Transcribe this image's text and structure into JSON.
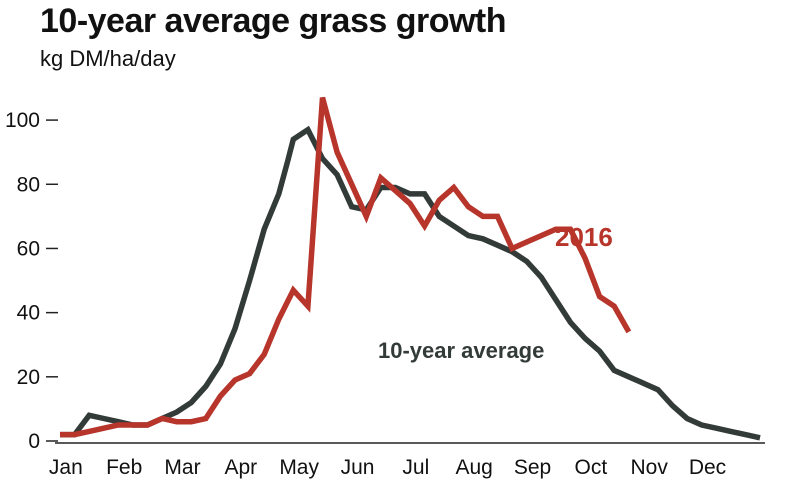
{
  "chart_data": {
    "type": "line",
    "title": "10-year average grass growth",
    "subtitle": "kg DM/ha/day",
    "xlabel": "",
    "ylabel": "",
    "x_categories": [
      "Jan",
      "Feb",
      "Mar",
      "Apr",
      "May",
      "Jun",
      "Jul",
      "Aug",
      "Sep",
      "Oct",
      "Nov",
      "Dec"
    ],
    "x_range": [
      0,
      12
    ],
    "ylim": [
      0,
      110
    ],
    "yticks": [
      0,
      20,
      40,
      60,
      80,
      100
    ],
    "grid": false,
    "legend": "inline labels",
    "series": [
      {
        "name": "10-year average",
        "color": "#333b38",
        "x": [
          0.0,
          0.25,
          0.5,
          0.75,
          1.0,
          1.25,
          1.5,
          1.75,
          2.0,
          2.25,
          2.5,
          2.75,
          3.0,
          3.25,
          3.5,
          3.75,
          3.9,
          4.0,
          4.25,
          4.5,
          4.75,
          5.0,
          5.25,
          5.5,
          5.75,
          6.0,
          6.25,
          6.5,
          6.75,
          7.0,
          7.25,
          7.5,
          7.75,
          8.0,
          8.25,
          8.5,
          8.75,
          9.0,
          9.25,
          9.5,
          9.75,
          10.0,
          10.25,
          10.5,
          10.75,
          11.0,
          11.25,
          11.5,
          11.75,
          12.0
        ],
        "values": [
          2,
          2,
          8,
          7,
          6,
          5,
          5,
          7,
          9,
          12,
          17,
          24,
          35,
          50,
          66,
          77,
          87,
          94,
          97,
          88,
          83,
          73,
          72,
          79,
          79,
          77,
          77,
          70,
          67,
          64,
          63,
          61,
          59,
          56,
          51,
          44,
          37,
          32,
          28,
          22,
          20,
          18,
          16,
          11,
          7,
          5,
          4,
          3,
          2,
          1
        ]
      },
      {
        "name": "2016",
        "color": "#b8352b",
        "x": [
          0.0,
          0.25,
          0.5,
          0.75,
          1.0,
          1.25,
          1.5,
          1.75,
          2.0,
          2.25,
          2.5,
          2.75,
          3.0,
          3.25,
          3.5,
          3.75,
          4.0,
          4.25,
          4.5,
          4.75,
          5.0,
          5.25,
          5.5,
          5.75,
          6.0,
          6.25,
          6.5,
          6.75,
          7.0,
          7.25,
          7.5,
          7.75,
          8.0,
          8.25,
          8.5,
          8.75,
          9.0,
          9.25,
          9.5,
          9.75
        ],
        "values": [
          2,
          2,
          3,
          4,
          5,
          5,
          5,
          7,
          6,
          6,
          7,
          14,
          19,
          21,
          27,
          38,
          47,
          42,
          107,
          90,
          80,
          70,
          82,
          78,
          74,
          67,
          75,
          79,
          73,
          70,
          70,
          60,
          62,
          64,
          66,
          66,
          57,
          45,
          42,
          34
        ]
      }
    ]
  }
}
